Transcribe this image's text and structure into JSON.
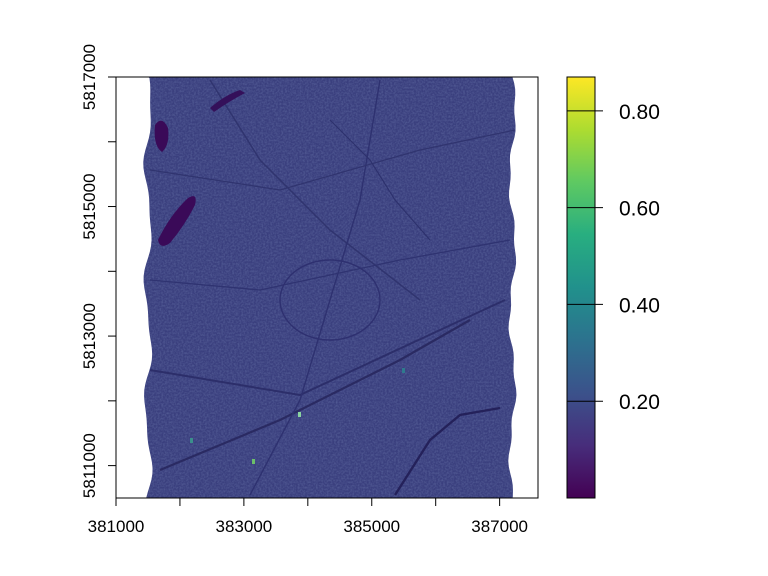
{
  "chart_data": {
    "type": "heatmap",
    "title": "",
    "xlabel": "",
    "ylabel": "",
    "xlim": [
      381000,
      387600
    ],
    "ylim": [
      5810500,
      5817000
    ],
    "x_ticks": [
      {
        "value": 381000,
        "label": "381000"
      },
      {
        "value": 382000,
        "label": ""
      },
      {
        "value": 383000,
        "label": "383000"
      },
      {
        "value": 384000,
        "label": ""
      },
      {
        "value": 385000,
        "label": "385000"
      },
      {
        "value": 386000,
        "label": ""
      },
      {
        "value": 387000,
        "label": "387000"
      }
    ],
    "y_ticks": [
      {
        "value": 5811000,
        "label": "5811000"
      },
      {
        "value": 5812000,
        "label": ""
      },
      {
        "value": 5813000,
        "label": "5813000"
      },
      {
        "value": 5814000,
        "label": ""
      },
      {
        "value": 5815000,
        "label": "5815000"
      },
      {
        "value": 5816000,
        "label": ""
      },
      {
        "value": 5817000,
        "label": "5817000"
      }
    ],
    "raster_extent": {
      "xmin": 381500,
      "xmax": 387200,
      "ymin": 5810500,
      "ymax": 5817000
    },
    "colorbar": {
      "palette": "viridis",
      "range": [
        0.0,
        0.87
      ],
      "ticks": [
        {
          "value": 0.2,
          "label": "0.20"
        },
        {
          "value": 0.4,
          "label": "0.40"
        },
        {
          "value": 0.6,
          "label": "0.60"
        },
        {
          "value": 0.8,
          "label": "0.80"
        }
      ]
    }
  }
}
